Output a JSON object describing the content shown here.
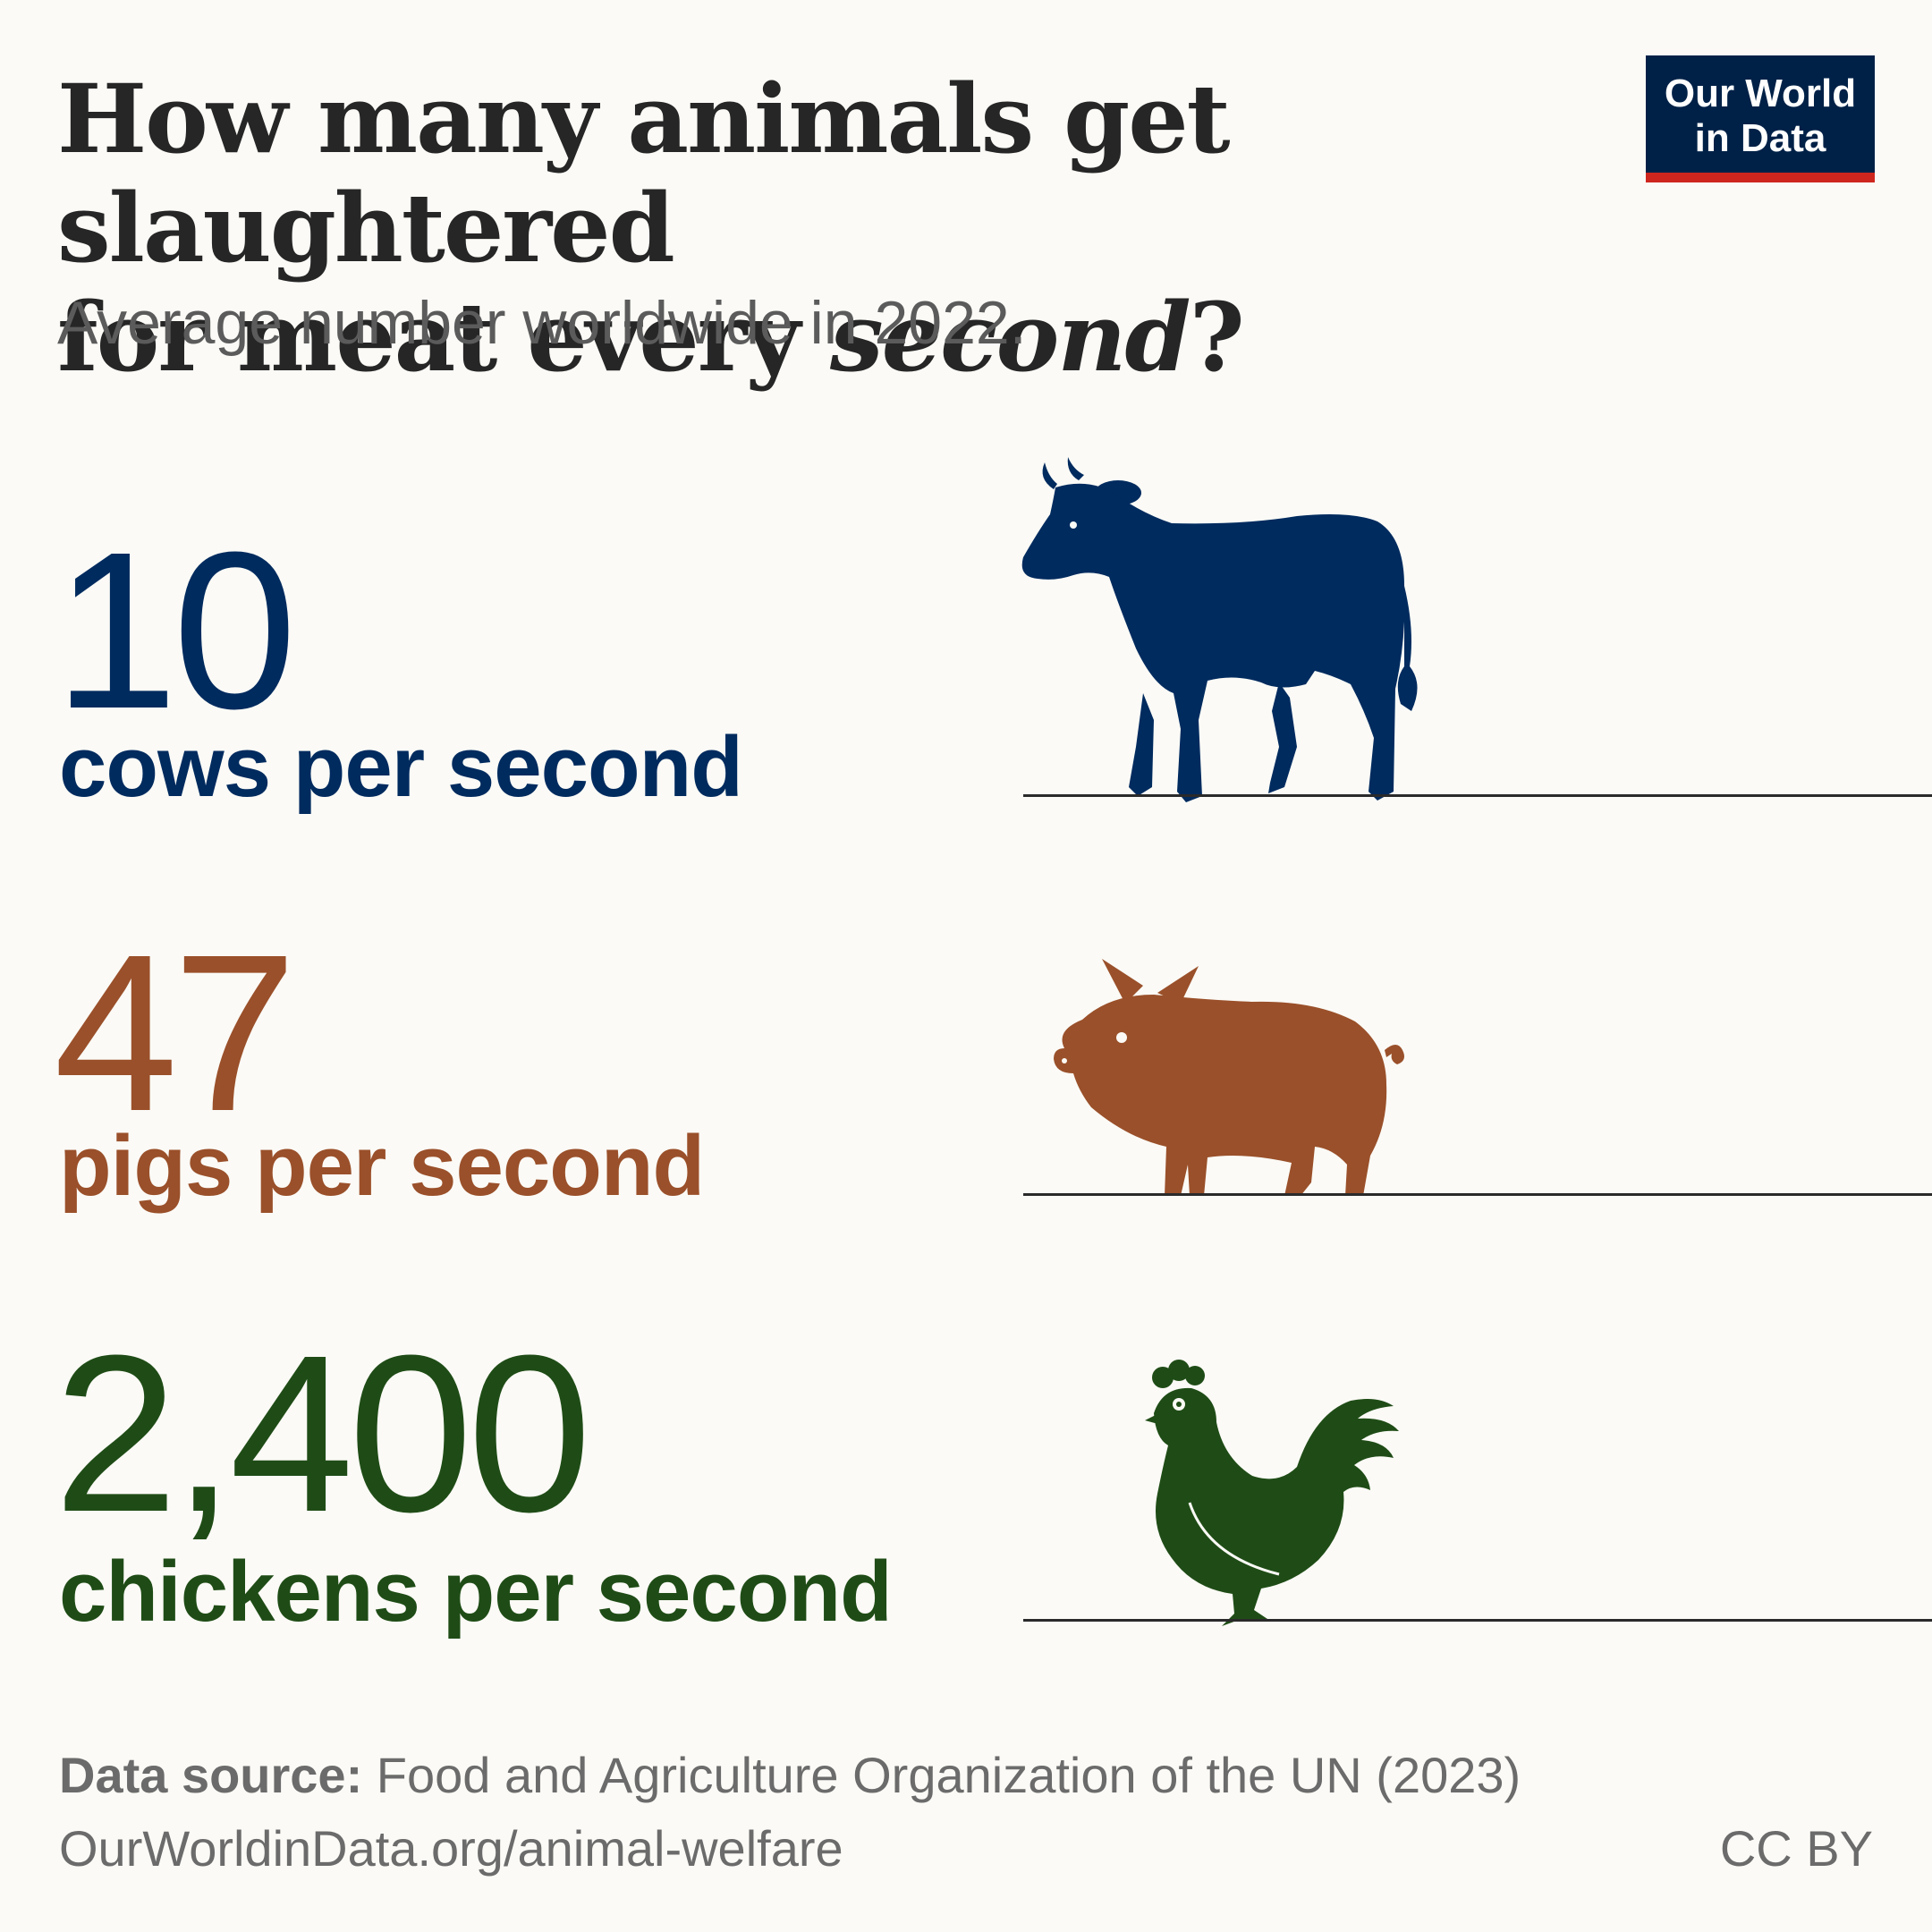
{
  "header": {
    "title_line1": "How many animals get slaughtered",
    "title_line2_pre": "for meat every ",
    "title_line2_em": "second",
    "title_line2_post": "?",
    "subtitle": "Average number worldwide in 2022."
  },
  "logo": {
    "line1": "Our World",
    "line2": "in Data"
  },
  "chart_data": {
    "type": "table",
    "title": "How many animals get slaughtered for meat every second?",
    "subtitle": "Average number worldwide in 2022.",
    "rows": [
      {
        "animal": "cows",
        "value": 10,
        "value_label": "10",
        "unit_label": "cows per second",
        "icon": "cow-icon",
        "color": "#002b5f"
      },
      {
        "animal": "pigs",
        "value": 47,
        "value_label": "47",
        "unit_label": "pigs per second",
        "icon": "pig-icon",
        "color": "#9a502a"
      },
      {
        "animal": "chickens",
        "value": 2400,
        "value_label": "2,400",
        "unit_label": "chickens per second",
        "icon": "chicken-icon",
        "color": "#1f4c16"
      }
    ]
  },
  "footer": {
    "source_label": "Data source:",
    "source_text": " Food and Agriculture Organization of the UN (2023)",
    "url": "OurWorldinData.org/animal-welfare",
    "license": "CC BY"
  }
}
